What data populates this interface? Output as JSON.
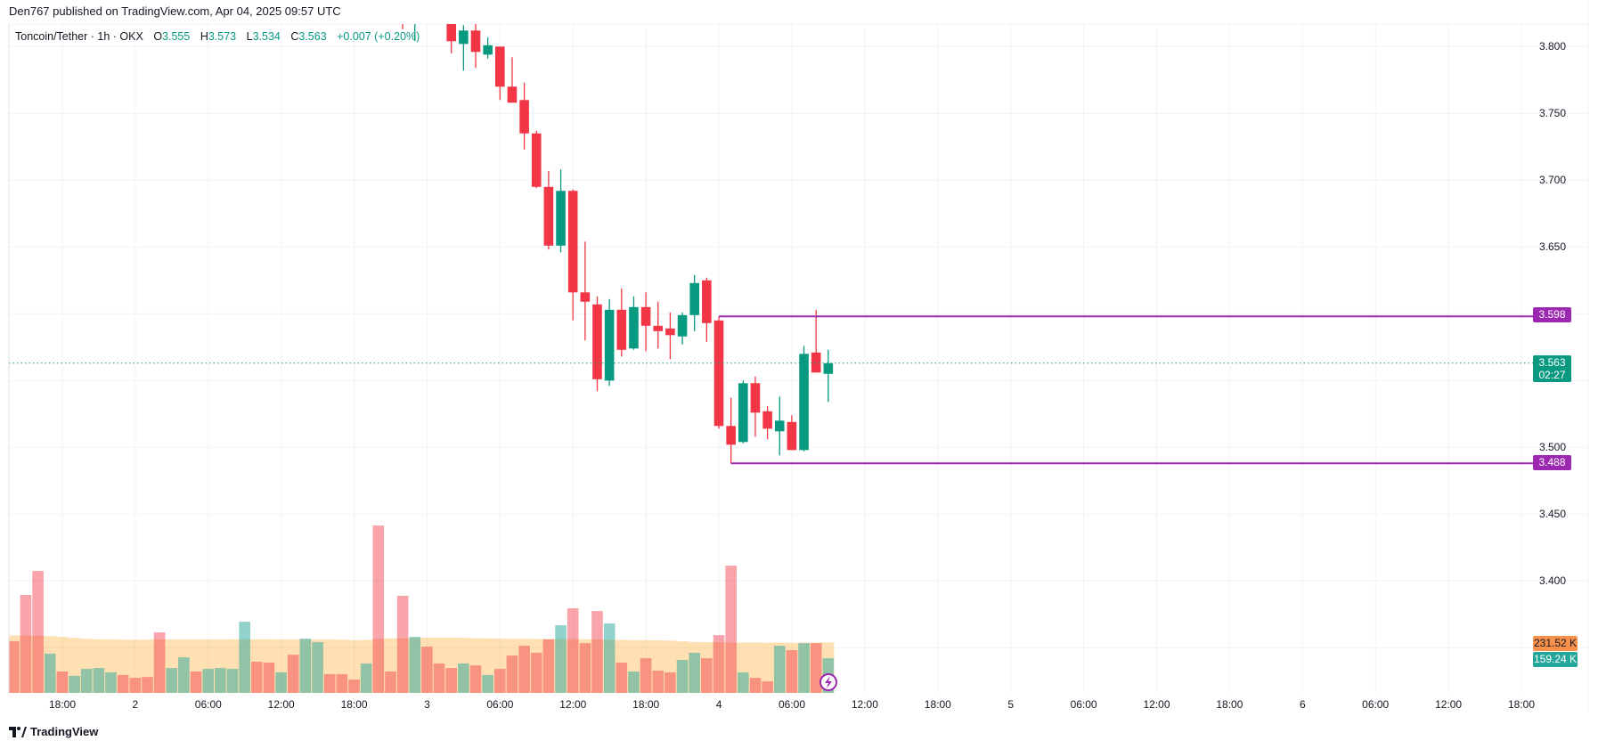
{
  "header": {
    "published": "Den767 published on TradingView.com, Apr 04, 2025 09:57 UTC"
  },
  "legend": {
    "symbol": "Toncoin/Tether · 1h · OKX",
    "o_label": "O",
    "o": "3.555",
    "h_label": "H",
    "h": "3.573",
    "l_label": "L",
    "l": "3.534",
    "c_label": "C",
    "c": "3.563",
    "change": "+0.007 (+0.20%)"
  },
  "price_axis": {
    "labels": [
      "3.800",
      "3.750",
      "3.700",
      "3.650",
      "3.500",
      "3.450",
      "3.400"
    ],
    "resistance_label": "3.598",
    "support_label": "3.488",
    "last_price_label": "3.563",
    "countdown": "02:27",
    "volume_ma_label": "231.52 K",
    "volume_label": "159.24 K"
  },
  "time_axis": {
    "labels": [
      "18:00",
      "2",
      "06:00",
      "12:00",
      "18:00",
      "3",
      "06:00",
      "12:00",
      "18:00",
      "4",
      "06:00",
      "12:00",
      "18:00",
      "5",
      "06:00",
      "12:00",
      "18:00",
      "6",
      "06:00",
      "12:00",
      "18:00"
    ]
  },
  "footer": {
    "brand": "TradingView"
  },
  "colors": {
    "up": "#089981",
    "down": "#f23645",
    "level": "#9c27b0",
    "ma": "#ff9800",
    "vol_up": "#26a69a",
    "vol_ma_label": "#f7904a"
  },
  "chart_data": {
    "type": "candlestick",
    "symbol": "Toncoin/Tether",
    "interval": "1h",
    "time_unit": "hours relative to Apr 04 00:00 UTC",
    "ylim": [
      3.35,
      3.82
    ],
    "grid": true,
    "candles": [
      {
        "t": -26,
        "o": 3.83,
        "h": 3.84,
        "l": 3.813,
        "c": 3.822
      },
      {
        "t": -25,
        "o": 3.82,
        "h": 3.835,
        "l": 3.804,
        "c": 3.83
      },
      {
        "t": -22,
        "o": 3.818,
        "h": 3.822,
        "l": 3.795,
        "c": 3.804
      },
      {
        "t": -21,
        "o": 3.802,
        "h": 3.816,
        "l": 3.782,
        "c": 3.812
      },
      {
        "t": -20,
        "o": 3.812,
        "h": 3.817,
        "l": 3.784,
        "c": 3.796
      },
      {
        "t": -19,
        "o": 3.794,
        "h": 3.807,
        "l": 3.791,
        "c": 3.801
      },
      {
        "t": -18,
        "o": 3.8,
        "h": 3.8,
        "l": 3.76,
        "c": 3.77
      },
      {
        "t": -17,
        "o": 3.77,
        "h": 3.792,
        "l": 3.758,
        "c": 3.758
      },
      {
        "t": -16,
        "o": 3.76,
        "h": 3.773,
        "l": 3.723,
        "c": 3.735
      },
      {
        "t": -15,
        "o": 3.735,
        "h": 3.737,
        "l": 3.694,
        "c": 3.695
      },
      {
        "t": -14,
        "o": 3.695,
        "h": 3.707,
        "l": 3.648,
        "c": 3.651
      },
      {
        "t": -13,
        "o": 3.651,
        "h": 3.708,
        "l": 3.646,
        "c": 3.692
      },
      {
        "t": -12,
        "o": 3.692,
        "h": 3.693,
        "l": 3.595,
        "c": 3.616
      },
      {
        "t": -11,
        "o": 3.616,
        "h": 3.654,
        "l": 3.58,
        "c": 3.609
      },
      {
        "t": -10,
        "o": 3.607,
        "h": 3.613,
        "l": 3.542,
        "c": 3.551
      },
      {
        "t": -9,
        "o": 3.55,
        "h": 3.611,
        "l": 3.546,
        "c": 3.603
      },
      {
        "t": -8,
        "o": 3.603,
        "h": 3.619,
        "l": 3.568,
        "c": 3.573
      },
      {
        "t": -7,
        "o": 3.574,
        "h": 3.613,
        "l": 3.573,
        "c": 3.605
      },
      {
        "t": -6,
        "o": 3.605,
        "h": 3.616,
        "l": 3.572,
        "c": 3.591
      },
      {
        "t": -5,
        "o": 3.591,
        "h": 3.609,
        "l": 3.574,
        "c": 3.587
      },
      {
        "t": -4,
        "o": 3.589,
        "h": 3.601,
        "l": 3.566,
        "c": 3.584
      },
      {
        "t": -3,
        "o": 3.583,
        "h": 3.601,
        "l": 3.577,
        "c": 3.599
      },
      {
        "t": -2,
        "o": 3.599,
        "h": 3.629,
        "l": 3.587,
        "c": 3.623
      },
      {
        "t": -1,
        "o": 3.625,
        "h": 3.627,
        "l": 3.579,
        "c": 3.593
      },
      {
        "t": 0,
        "o": 3.595,
        "h": 3.598,
        "l": 3.514,
        "c": 3.516
      },
      {
        "t": 1,
        "o": 3.516,
        "h": 3.537,
        "l": 3.488,
        "c": 3.502
      },
      {
        "t": 2,
        "o": 3.504,
        "h": 3.55,
        "l": 3.503,
        "c": 3.548
      },
      {
        "t": 3,
        "o": 3.548,
        "h": 3.553,
        "l": 3.508,
        "c": 3.526
      },
      {
        "t": 4,
        "o": 3.527,
        "h": 3.531,
        "l": 3.506,
        "c": 3.514
      },
      {
        "t": 5,
        "o": 3.512,
        "h": 3.538,
        "l": 3.494,
        "c": 3.52
      },
      {
        "t": 6,
        "o": 3.519,
        "h": 3.524,
        "l": 3.498,
        "c": 3.498
      },
      {
        "t": 7,
        "o": 3.498,
        "h": 3.576,
        "l": 3.497,
        "c": 3.57
      },
      {
        "t": 8,
        "o": 3.571,
        "h": 3.603,
        "l": 3.556,
        "c": 3.556
      },
      {
        "t": 9,
        "o": 3.555,
        "h": 3.573,
        "l": 3.534,
        "c": 3.563
      }
    ],
    "volume_start_hour": -58,
    "volume_k": [
      237,
      449,
      559,
      180,
      98,
      78,
      110,
      114,
      94,
      82,
      69,
      73,
      277,
      114,
      163,
      98,
      110,
      114,
      110,
      326,
      143,
      139,
      94,
      175,
      249,
      233,
      86,
      86,
      61,
      135,
      767,
      98,
      445,
      257,
      212,
      135,
      114,
      135,
      126,
      82,
      110,
      171,
      216,
      184,
      245,
      310,
      388,
      228,
      375,
      318,
      139,
      98,
      159,
      102,
      94,
      151,
      184,
      159,
      265,
      583,
      94,
      69,
      53,
      216,
      196,
      228,
      228,
      159
    ],
    "volume_up": [
      0,
      0,
      0,
      1,
      0,
      1,
      1,
      1,
      1,
      0,
      0,
      0,
      0,
      1,
      1,
      0,
      1,
      1,
      1,
      1,
      0,
      0,
      1,
      0,
      1,
      1,
      0,
      0,
      0,
      1,
      0,
      0,
      0,
      1,
      0,
      0,
      0,
      1,
      0,
      1,
      0,
      0,
      0,
      0,
      0,
      1,
      0,
      0,
      0,
      1,
      0,
      1,
      0,
      0,
      0,
      1,
      1,
      0,
      0,
      0,
      1,
      0,
      0,
      1,
      0,
      1,
      0,
      1
    ],
    "volume_ma_k": [
      264,
      263,
      262,
      260,
      256,
      252,
      248,
      246,
      245,
      244,
      244,
      244,
      245,
      245,
      245,
      245,
      245,
      245,
      246,
      246,
      246,
      246,
      245,
      245,
      245,
      245,
      245,
      244,
      242,
      243,
      248,
      250,
      250,
      252,
      253,
      253,
      253,
      252,
      251,
      250,
      249,
      248,
      248,
      247,
      247,
      247,
      247,
      246,
      245,
      244,
      243,
      242,
      242,
      241,
      240,
      236,
      233,
      232,
      232,
      231,
      231,
      231,
      230,
      230,
      230,
      231,
      231,
      231.52
    ],
    "levels": [
      {
        "price": 3.598,
        "from_hour": 0
      },
      {
        "price": 3.488,
        "from_hour": 1
      }
    ],
    "last_price": 3.563
  }
}
